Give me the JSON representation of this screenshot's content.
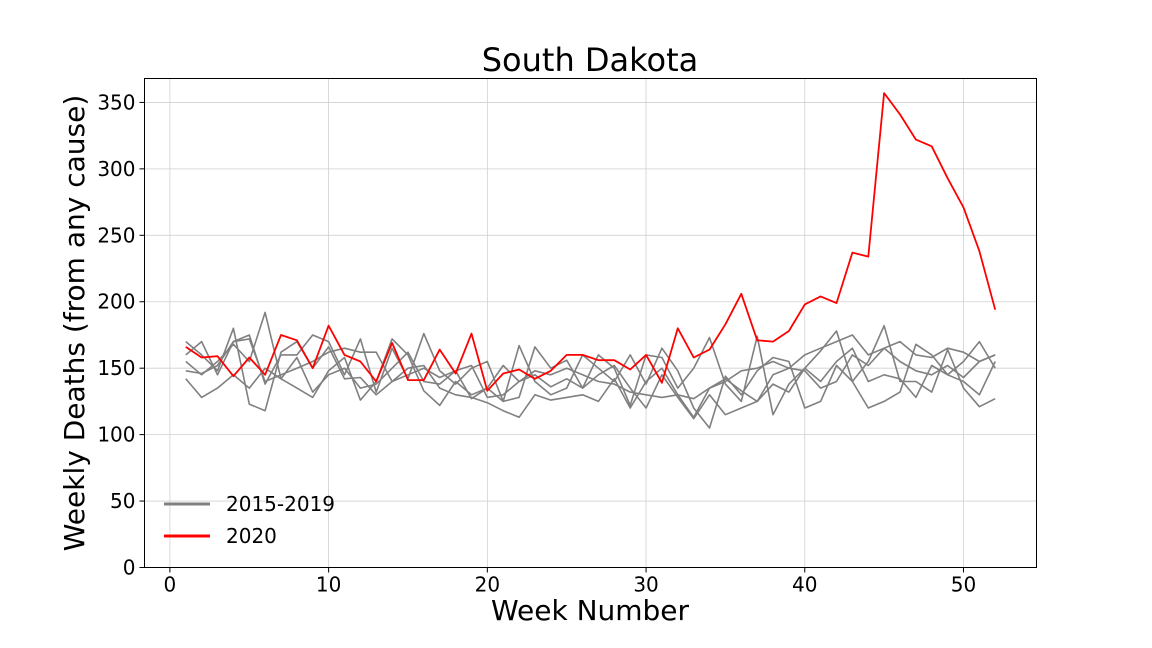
{
  "chart_data": {
    "type": "line",
    "title": "South Dakota",
    "xlabel": "Week Number",
    "ylabel": "Weekly Deaths (from any cause)",
    "xlim": [
      -1.6,
      54.6
    ],
    "ylim": [
      0,
      368
    ],
    "xticks": [
      0,
      10,
      20,
      30,
      40,
      50
    ],
    "yticks": [
      0,
      50,
      100,
      150,
      200,
      250,
      300,
      350
    ],
    "grid": true,
    "legend_position": "lower-left",
    "legend": [
      {
        "label": "2015-2019",
        "color": "#808080"
      },
      {
        "label": "2020",
        "color": "#ff0000"
      }
    ],
    "x": [
      1,
      2,
      3,
      4,
      5,
      6,
      7,
      8,
      9,
      10,
      11,
      12,
      13,
      14,
      15,
      16,
      17,
      18,
      19,
      20,
      21,
      22,
      23,
      24,
      25,
      26,
      27,
      28,
      29,
      30,
      31,
      32,
      33,
      34,
      35,
      36,
      37,
      38,
      39,
      40,
      41,
      42,
      43,
      44,
      45,
      46,
      47,
      48,
      49,
      50,
      51,
      52
    ],
    "series": [
      {
        "name": "2015-2019",
        "color": "#808080",
        "values": [
          148,
          146,
          152,
          170,
          172,
          140,
          145,
          150,
          155,
          162,
          165,
          162,
          162,
          140,
          145,
          150,
          143,
          148,
          152,
          128,
          130,
          140,
          148,
          145,
          150,
          145,
          140,
          138,
          132,
          130,
          128,
          130,
          127,
          135,
          140,
          148,
          150,
          155,
          150,
          160,
          165,
          170,
          175,
          160,
          165,
          170,
          160,
          158,
          165,
          162,
          155,
          160
        ]
      },
      {
        "name": "2015-2019",
        "color": "#808080",
        "values": [
          170,
          160,
          148,
          180,
          123,
          118,
          162,
          170,
          150,
          166,
          142,
          143,
          130,
          140,
          150,
          152,
          135,
          130,
          128,
          124,
          118,
          113,
          130,
          126,
          128,
          130,
          125,
          142,
          120,
          140,
          150,
          130,
          113,
          135,
          142,
          133,
          125,
          145,
          150,
          148,
          135,
          140,
          160,
          152,
          165,
          155,
          148,
          145,
          152,
          143,
          155,
          160
        ]
      },
      {
        "name": "2015-2019",
        "color": "#808080",
        "values": [
          142,
          128,
          135,
          145,
          135,
          150,
          142,
          135,
          128,
          148,
          158,
          126,
          140,
          172,
          160,
          133,
          122,
          140,
          130,
          135,
          152,
          140,
          145,
          136,
          142,
          135,
          145,
          152,
          135,
          120,
          145,
          128,
          112,
          130,
          115,
          120,
          125,
          138,
          132,
          150,
          140,
          155,
          165,
          140,
          145,
          142,
          128,
          152,
          145,
          140,
          130,
          155
        ]
      },
      {
        "name": "2015-2019",
        "color": "#808080",
        "values": [
          160,
          170,
          145,
          170,
          175,
          138,
          160,
          160,
          175,
          170,
          145,
          172,
          132,
          165,
          142,
          176,
          148,
          138,
          150,
          155,
          125,
          167,
          140,
          130,
          135,
          160,
          150,
          140,
          160,
          138,
          165,
          148,
          120,
          105,
          144,
          130,
          148,
          158,
          155,
          120,
          125,
          152,
          140,
          120,
          125,
          132,
          168,
          160,
          145,
          155,
          170,
          150
        ]
      },
      {
        "name": "2015-2019",
        "color": "#808080",
        "values": [
          155,
          145,
          155,
          168,
          155,
          192,
          142,
          158,
          132,
          145,
          150,
          135,
          138,
          150,
          162,
          140,
          138,
          148,
          127,
          135,
          125,
          128,
          166,
          150,
          156,
          135,
          160,
          150,
          122,
          160,
          158,
          135,
          150,
          173,
          138,
          125,
          174,
          115,
          138,
          150,
          163,
          178,
          140,
          155,
          182,
          140,
          140,
          132,
          164,
          135,
          121,
          127
        ]
      },
      {
        "name": "2020",
        "color": "#ff0000",
        "values": [
          166,
          158,
          159,
          144,
          158,
          145,
          175,
          171,
          150,
          182,
          160,
          155,
          140,
          169,
          141,
          141,
          164,
          146,
          176,
          133,
          146,
          149,
          142,
          148,
          160,
          160,
          156,
          156,
          149,
          160,
          139,
          180,
          158,
          164,
          183,
          206,
          171,
          170,
          178,
          198,
          204,
          199,
          237,
          234,
          357,
          341,
          322,
          317,
          293,
          271,
          238,
          194
        ]
      }
    ]
  }
}
